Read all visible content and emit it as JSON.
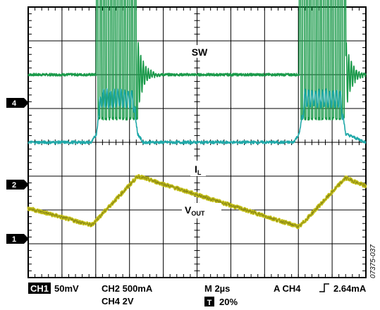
{
  "chart_data": {
    "type": "line",
    "title": "",
    "xlabel": "",
    "ylabel": "",
    "grid": true,
    "grid_divisions": {
      "x": 10,
      "y": 8
    },
    "x_unit": "µs",
    "xlim": [
      0,
      20
    ],
    "series": [
      {
        "name": "SW",
        "channel": "CH4",
        "color": "#1a9a4a",
        "level_div": 2.0,
        "bursts": [
          [
            4.04,
            6.48
          ],
          [
            16.05,
            18.8
          ]
        ],
        "high_div": 2.85,
        "low_div": 1.3
      },
      {
        "name": "I_L",
        "channel": "CH2",
        "color": "#1fa8a8",
        "level_div": 0.0,
        "x": [
          0,
          3.75,
          4.04,
          4.3,
          6.2,
          6.48,
          6.8,
          15.7,
          16.05,
          16.4,
          18.5,
          18.8,
          20
        ],
        "div": [
          0,
          0,
          0.25,
          1.3,
          1.3,
          0.25,
          0,
          0,
          0.25,
          1.3,
          1.3,
          0.25,
          0
        ]
      },
      {
        "name": "V_OUT",
        "channel": "CH1",
        "color": "#c8c41e",
        "level_div": -2.0,
        "x": [
          0,
          3.75,
          6.5,
          16.05,
          18.8,
          20
        ],
        "div": [
          0.05,
          -0.45,
          1.0,
          -0.5,
          0.95,
          0.7
        ]
      }
    ],
    "annotations": [
      {
        "text": "SW",
        "subscript": ""
      },
      {
        "text": "I",
        "subscript": "L"
      },
      {
        "text": "V",
        "subscript": "OUT"
      }
    ],
    "ground_markers": [
      "4",
      "2",
      "1"
    ],
    "settings": {
      "ch1_box": "CH1",
      "ch1_scale": "50mV",
      "ch2": "CH2  500mA",
      "ch4": "CH4 2V",
      "timebase": "M 2µs",
      "trigger": "A  CH4",
      "trigger_level": "2.64mA",
      "t_box": "T",
      "t_position": "20%"
    },
    "figure_id": "07375-037"
  }
}
